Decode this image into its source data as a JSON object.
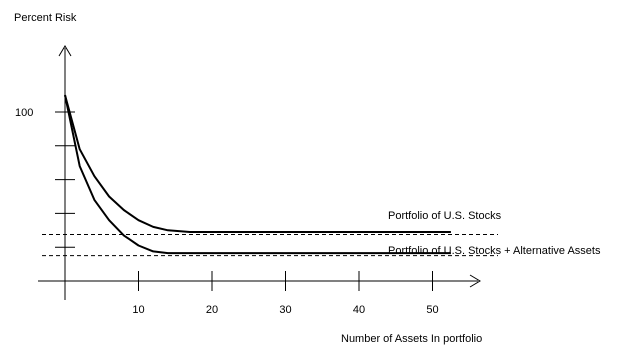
{
  "chart_data": {
    "type": "line",
    "title": "",
    "ylabel": "Percent Risk",
    "xlabel": "Number of Assets In portfolio",
    "xlim": [
      0,
      55
    ],
    "ylim": [
      0,
      110
    ],
    "x_ticks": [
      {
        "value": 10,
        "label": "10"
      },
      {
        "value": 20,
        "label": "20"
      },
      {
        "value": 30,
        "label": "30"
      },
      {
        "value": 40,
        "label": "40"
      },
      {
        "value": 50,
        "label": "50"
      }
    ],
    "y_ticks": [
      {
        "value": 100,
        "label": "100"
      },
      {
        "value": 80,
        "label": ""
      },
      {
        "value": 60,
        "label": ""
      },
      {
        "value": 40,
        "label": ""
      },
      {
        "value": 20,
        "label": ""
      }
    ],
    "series": [
      {
        "name": "Portfolio of U.S. Stocks",
        "x": [
          0,
          2,
          4,
          6,
          8,
          10,
          12,
          14,
          17,
          20,
          30,
          40,
          52.5
        ],
        "y": [
          110,
          78,
          62,
          50,
          42,
          36,
          32,
          30,
          29,
          29,
          29,
          29,
          29
        ]
      },
      {
        "name": "Portfolio of U.S. Stocks + Alternative Assets",
        "x": [
          0,
          2,
          4,
          6,
          8,
          10,
          12,
          14,
          20,
          30,
          40,
          52.5
        ],
        "y": [
          110,
          68,
          48,
          36,
          27,
          21,
          17.5,
          16.5,
          16.5,
          16.5,
          16.5,
          16.5
        ]
      }
    ],
    "reference_lines": [
      27.5,
      15
    ],
    "grid": false,
    "legend": "labels-on-lines"
  }
}
